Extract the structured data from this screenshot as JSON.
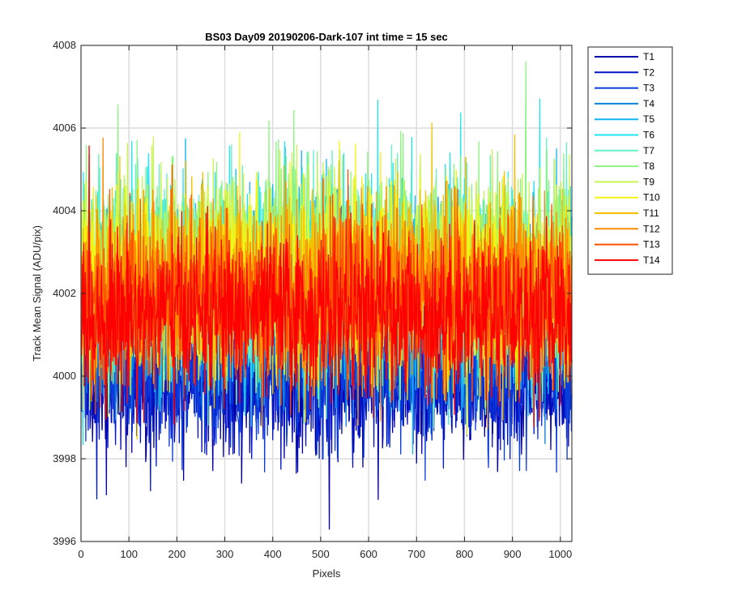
{
  "chart_data": {
    "type": "line",
    "title": "BS03 Day09 20190206-Dark-107 int time = 15 sec",
    "xlabel": "Pixels",
    "ylabel": "Track Mean Signal (ADU/pix)",
    "xlim": [
      0,
      1024
    ],
    "ylim": [
      3996,
      4008
    ],
    "xticks": [
      0,
      100,
      200,
      300,
      400,
      500,
      600,
      700,
      800,
      900,
      1000
    ],
    "yticks": [
      3996,
      3998,
      4000,
      4002,
      4004,
      4006,
      4008
    ],
    "grid": true,
    "legend_position": "outside-top-right",
    "series": [
      {
        "name": "T1",
        "color": "#0000aa",
        "mean": 3999.9,
        "spread": 0.85
      },
      {
        "name": "T2",
        "color": "#0014c8",
        "mean": 4000.0,
        "spread": 0.85
      },
      {
        "name": "T3",
        "color": "#0a3cdc",
        "mean": 4000.2,
        "spread": 0.9
      },
      {
        "name": "T4",
        "color": "#0a82dc",
        "mean": 4001.6,
        "spread": 1.1
      },
      {
        "name": "T5",
        "color": "#14b4f0",
        "mean": 4002.1,
        "spread": 1.2
      },
      {
        "name": "T6",
        "color": "#1ee6f5",
        "mean": 4002.4,
        "spread": 1.2
      },
      {
        "name": "T7",
        "color": "#64f0c8",
        "mean": 4002.5,
        "spread": 1.2
      },
      {
        "name": "T8",
        "color": "#8cf582",
        "mean": 4002.6,
        "spread": 1.2
      },
      {
        "name": "T9",
        "color": "#c8f550",
        "mean": 4002.5,
        "spread": 1.2
      },
      {
        "name": "T10",
        "color": "#f5f514",
        "mean": 4002.4,
        "spread": 1.15
      },
      {
        "name": "T11",
        "color": "#f5c000",
        "mean": 4002.2,
        "spread": 1.1
      },
      {
        "name": "T12",
        "color": "#ff8c00",
        "mean": 4002.0,
        "spread": 1.05
      },
      {
        "name": "T13",
        "color": "#ff5000",
        "mean": 4001.8,
        "spread": 1.0
      },
      {
        "name": "T14",
        "color": "#ff0000",
        "mean": 4001.5,
        "spread": 0.95
      }
    ]
  }
}
